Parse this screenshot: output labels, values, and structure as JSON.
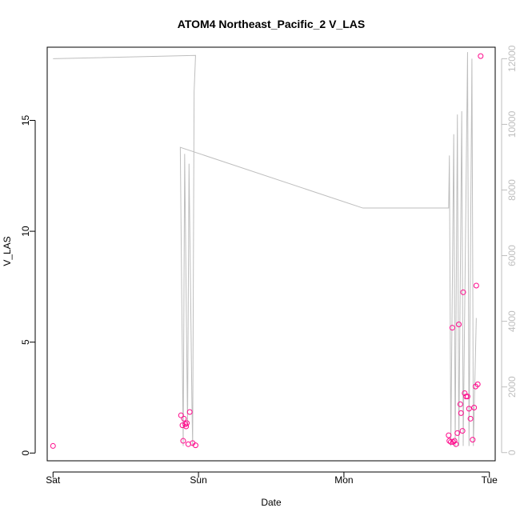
{
  "chart_data": {
    "type": "scatter",
    "title": "ATOM4 Northeast_Pacific_2 V_LAS",
    "xlabel": "Date",
    "ylabel": "V_LAS",
    "x_ticks": [
      "Sat",
      "Sun",
      "Mon",
      "Tue"
    ],
    "y_ticks": [
      "0",
      "5",
      "10",
      "15"
    ],
    "y2_ticks": [
      "0",
      "2000",
      "4000",
      "6000",
      "8000",
      "10000",
      "12000"
    ],
    "x_range_days": [
      -0.04,
      3.04
    ],
    "ylim": [
      -0.35,
      18.3
    ],
    "y2lim": [
      -250,
      12350
    ],
    "colors": {
      "points": "#ff0a8c",
      "line": "#bebebe",
      "right_axis": "#bebebe",
      "axes": "#000000"
    },
    "series": [
      {
        "kind": "points",
        "points": [
          {
            "x": 0.0,
            "y": 0.32
          },
          {
            "x": 0.88,
            "y": 1.7
          },
          {
            "x": 0.89,
            "y": 1.25
          },
          {
            "x": 0.895,
            "y": 0.55
          },
          {
            "x": 0.9,
            "y": 1.55
          },
          {
            "x": 0.91,
            "y": 1.3
          },
          {
            "x": 0.915,
            "y": 1.2
          },
          {
            "x": 0.92,
            "y": 1.35
          },
          {
            "x": 0.93,
            "y": 0.4
          },
          {
            "x": 0.94,
            "y": 1.85
          },
          {
            "x": 0.96,
            "y": 0.45
          },
          {
            "x": 0.98,
            "y": 0.35
          },
          {
            "x": 2.72,
            "y": 0.8
          },
          {
            "x": 2.725,
            "y": 0.55
          },
          {
            "x": 2.735,
            "y": 0.5
          },
          {
            "x": 2.745,
            "y": 5.65
          },
          {
            "x": 2.75,
            "y": 0.5
          },
          {
            "x": 2.76,
            "y": 0.55
          },
          {
            "x": 2.77,
            "y": 0.4
          },
          {
            "x": 2.78,
            "y": 0.9
          },
          {
            "x": 2.79,
            "y": 5.8
          },
          {
            "x": 2.8,
            "y": 2.2
          },
          {
            "x": 2.805,
            "y": 1.8
          },
          {
            "x": 2.815,
            "y": 1.0
          },
          {
            "x": 2.82,
            "y": 7.25
          },
          {
            "x": 2.83,
            "y": 2.7
          },
          {
            "x": 2.84,
            "y": 2.55
          },
          {
            "x": 2.85,
            "y": 2.55
          },
          {
            "x": 2.86,
            "y": 2.0
          },
          {
            "x": 2.87,
            "y": 1.55
          },
          {
            "x": 2.885,
            "y": 0.6
          },
          {
            "x": 2.895,
            "y": 2.05
          },
          {
            "x": 2.905,
            "y": 3.0
          },
          {
            "x": 2.91,
            "y": 7.55
          },
          {
            "x": 2.92,
            "y": 3.1
          },
          {
            "x": 2.94,
            "y": 17.9
          }
        ]
      },
      {
        "kind": "line",
        "points": [
          {
            "x": 0.0,
            "y2": 12000
          },
          {
            "x": 0.98,
            "y2": 12100
          },
          {
            "x": 0.97,
            "y2": 11000
          },
          {
            "x": 0.96,
            "y2": 200
          },
          {
            "x": 0.955,
            "y2": 1500
          },
          {
            "x": 0.935,
            "y2": 8800
          },
          {
            "x": 0.925,
            "y2": 800
          },
          {
            "x": 0.905,
            "y2": 9100
          },
          {
            "x": 0.895,
            "y2": 200
          },
          {
            "x": 0.875,
            "y2": 9300
          },
          {
            "x": 2.13,
            "y2": 7450
          },
          {
            "x": 2.72,
            "y2": 7450
          },
          {
            "x": 2.725,
            "y2": 9050
          },
          {
            "x": 2.735,
            "y2": 200
          },
          {
            "x": 2.755,
            "y2": 9700
          },
          {
            "x": 2.765,
            "y2": 200
          },
          {
            "x": 2.78,
            "y2": 10300
          },
          {
            "x": 2.79,
            "y2": 200
          },
          {
            "x": 2.81,
            "y2": 10400
          },
          {
            "x": 2.82,
            "y2": 200
          },
          {
            "x": 2.85,
            "y2": 12200
          },
          {
            "x": 2.86,
            "y2": 200
          },
          {
            "x": 2.88,
            "y2": 12000
          },
          {
            "x": 2.89,
            "y2": 200
          },
          {
            "x": 2.91,
            "y2": 4100
          }
        ]
      }
    ]
  }
}
